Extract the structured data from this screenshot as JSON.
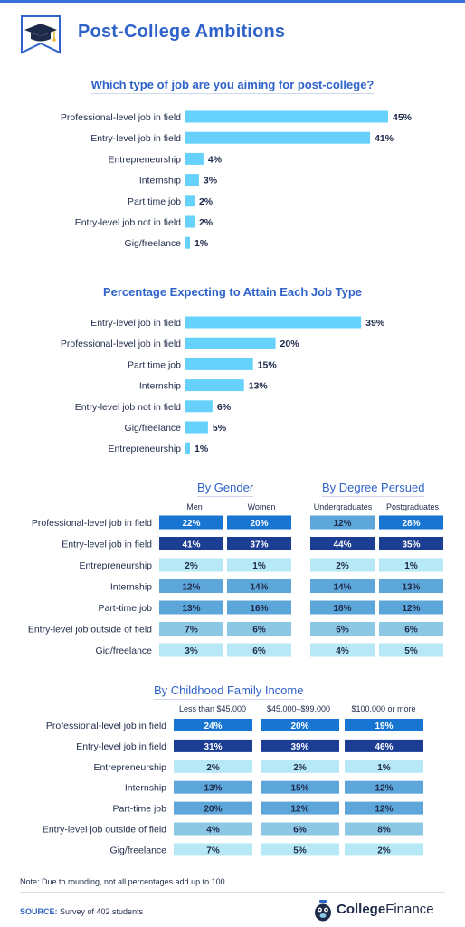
{
  "header": {
    "title": "Post-College Ambitions"
  },
  "chart_data": [
    {
      "type": "bar",
      "title": "Which type of job are you aiming for post-college?",
      "categories": [
        "Professional-level job in field",
        "Entry-level job in field",
        "Entrepreneurship",
        "Internship",
        "Part time job",
        "Entry-level job not in field",
        "Gig/freelance"
      ],
      "values": [
        45,
        41,
        4,
        3,
        2,
        2,
        1
      ],
      "value_labels": [
        "45%",
        "41%",
        "4%",
        "3%",
        "2%",
        "2%",
        "1%"
      ],
      "bar_color": "#66d2fb"
    },
    {
      "type": "bar",
      "title": "Percentage Expecting to Attain Each Job Type",
      "categories": [
        "Entry-level job in field",
        "Professional-level job in field",
        "Part time job",
        "Internship",
        "Entry-level job not in field",
        "Gig/freelance",
        "Entrepreneurship"
      ],
      "values": [
        39,
        20,
        15,
        13,
        6,
        5,
        1
      ],
      "value_labels": [
        "39%",
        "20%",
        "15%",
        "13%",
        "6%",
        "5%",
        "1%"
      ],
      "bar_color": "#66d2fb"
    },
    {
      "type": "table",
      "groups": [
        {
          "title": "By Gender",
          "columns": [
            "Men",
            "Women"
          ]
        },
        {
          "title": "By Degree Persued",
          "columns": [
            "Undergraduates",
            "Postgraduates"
          ]
        }
      ],
      "rows": [
        "Professional-level job in field",
        "Entry-level job in field",
        "Entrepreneurship",
        "Internship",
        "Part-time job",
        "Entry-level job outside of field",
        "Gig/freelance"
      ],
      "values": [
        [
          22,
          20,
          12,
          28
        ],
        [
          41,
          37,
          44,
          35
        ],
        [
          2,
          1,
          2,
          1
        ],
        [
          12,
          14,
          14,
          13
        ],
        [
          13,
          16,
          18,
          12
        ],
        [
          7,
          6,
          6,
          6
        ],
        [
          3,
          6,
          4,
          5
        ]
      ],
      "labels": [
        [
          "22%",
          "20%",
          "12%",
          "28%"
        ],
        [
          "41%",
          "37%",
          "44%",
          "35%"
        ],
        [
          "2%",
          "1%",
          "2%",
          "1%"
        ],
        [
          "12%",
          "14%",
          "14%",
          "13%"
        ],
        [
          "13%",
          "16%",
          "18%",
          "12%"
        ],
        [
          "7%",
          "6%",
          "6%",
          "6%"
        ],
        [
          "3%",
          "6%",
          "4%",
          "5%"
        ]
      ],
      "cell_colors": [
        [
          "#1876d2",
          "#1876d2",
          "#5da6da",
          "#1876d2"
        ],
        [
          "#1c3d94",
          "#1c3d94",
          "#1c3d94",
          "#1c3d94"
        ],
        [
          "#b7e8f5",
          "#b7e8f5",
          "#b7e8f5",
          "#b7e8f5"
        ],
        [
          "#5da6da",
          "#5da6da",
          "#5da6da",
          "#5da6da"
        ],
        [
          "#5da6da",
          "#5da6da",
          "#5da6da",
          "#5da6da"
        ],
        [
          "#8cc7e4",
          "#8cc7e4",
          "#8cc7e4",
          "#8cc7e4"
        ],
        [
          "#b7e8f5",
          "#b7e8f5",
          "#b7e8f5",
          "#b7e8f5"
        ]
      ]
    },
    {
      "type": "table",
      "groups": [
        {
          "title": "By Childhood Family Income",
          "columns": [
            "Less than $45,000",
            "$45,000–$99,000",
            "$100,000 or more"
          ]
        }
      ],
      "rows": [
        "Professional-level job in field",
        "Entry-level job in field",
        "Entrepreneurship",
        "Internship",
        "Part-time job",
        "Entry-level job outside of field",
        "Gig/freelance"
      ],
      "values": [
        [
          24,
          20,
          19
        ],
        [
          31,
          39,
          46
        ],
        [
          2,
          2,
          1
        ],
        [
          13,
          15,
          12
        ],
        [
          20,
          12,
          12
        ],
        [
          4,
          6,
          8
        ],
        [
          7,
          5,
          2
        ]
      ],
      "labels": [
        [
          "24%",
          "20%",
          "19%"
        ],
        [
          "31%",
          "39%",
          "46%"
        ],
        [
          "2%",
          "2%",
          "1%"
        ],
        [
          "13%",
          "15%",
          "12%"
        ],
        [
          "20%",
          "12%",
          "12%"
        ],
        [
          "4%",
          "6%",
          "8%"
        ],
        [
          "7%",
          "5%",
          "2%"
        ]
      ],
      "cell_colors": [
        [
          "#1876d2",
          "#1876d2",
          "#1876d2"
        ],
        [
          "#1c3d94",
          "#1c3d94",
          "#1c3d94"
        ],
        [
          "#b7e8f5",
          "#b7e8f5",
          "#b7e8f5"
        ],
        [
          "#5da6da",
          "#5da6da",
          "#5da6da"
        ],
        [
          "#5da6da",
          "#5da6da",
          "#5da6da"
        ],
        [
          "#8cc7e4",
          "#8cc7e4",
          "#8cc7e4"
        ],
        [
          "#b7e8f5",
          "#b7e8f5",
          "#b7e8f5"
        ]
      ]
    }
  ],
  "footer": {
    "note": "Note: Due to rounding, not all percentages add up to 100.",
    "source_key": "SOURCE:",
    "source_text": " Survey of 402 students",
    "brand_part1": "College",
    "brand_part2": "Finance"
  },
  "colors": {
    "accent": "#2f63c9",
    "text": "#1e2a4a",
    "bar": "#66d2fb"
  },
  "icons": [
    "graduation-cap-icon",
    "piggy-bank-icon"
  ]
}
